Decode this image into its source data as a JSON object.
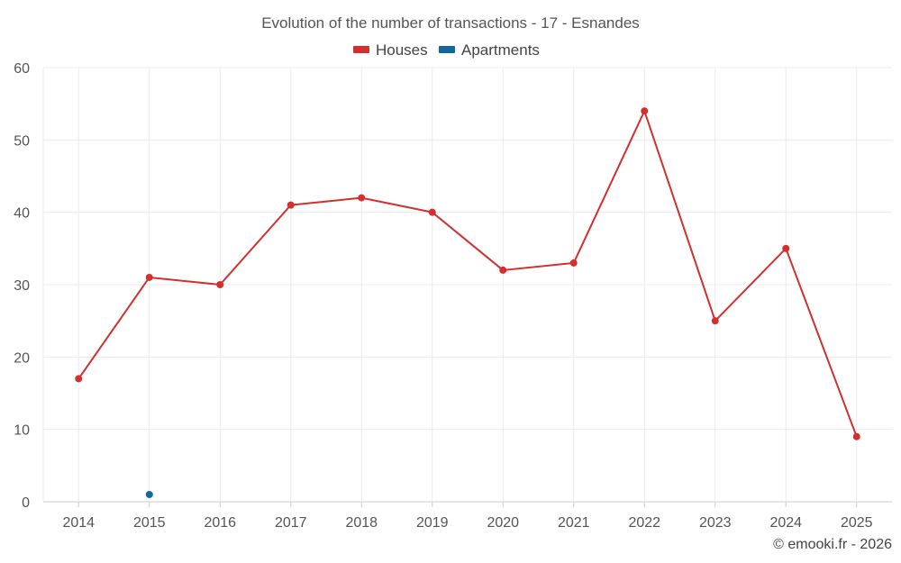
{
  "chart_data": {
    "type": "line",
    "title": "Evolution of the number of transactions - 17 - Esnandes",
    "xlabel": "",
    "ylabel": "",
    "ylim": [
      0,
      60
    ],
    "yticks": [
      0,
      10,
      20,
      30,
      40,
      50,
      60
    ],
    "categories": [
      "2014",
      "2015",
      "2016",
      "2017",
      "2018",
      "2019",
      "2020",
      "2021",
      "2022",
      "2023",
      "2024",
      "2025"
    ],
    "series": [
      {
        "name": "Houses",
        "color": "#d32f2f",
        "values": [
          17,
          31,
          30,
          41,
          42,
          40,
          32,
          33,
          54,
          25,
          35,
          9
        ]
      },
      {
        "name": "Apartments",
        "color": "#0d6a9a",
        "values": [
          null,
          1,
          null,
          null,
          null,
          null,
          null,
          null,
          null,
          null,
          null,
          null
        ]
      }
    ],
    "legend_position": "top-center",
    "grid": true
  },
  "credit": "© emooki.fr - 2026"
}
